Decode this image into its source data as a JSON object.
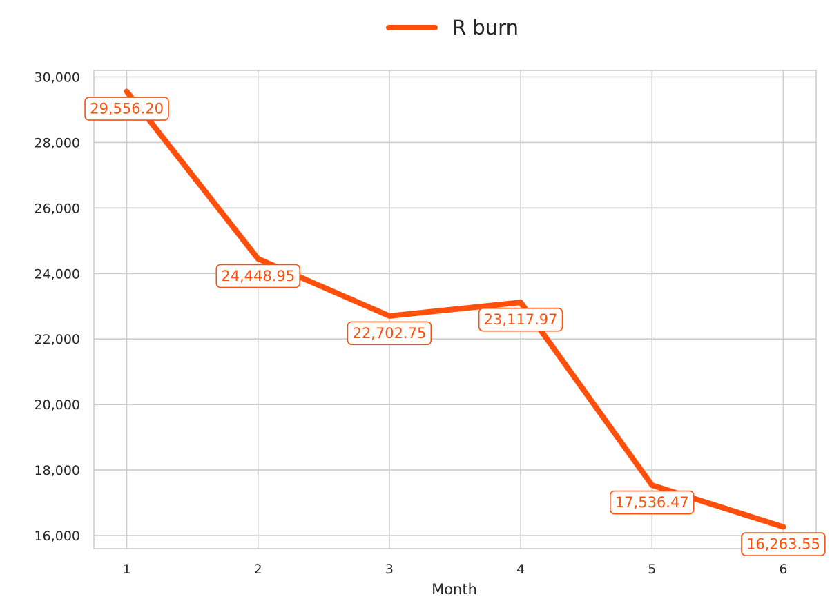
{
  "chart_data": {
    "type": "line",
    "title": "",
    "xlabel": "Month",
    "ylabel": "",
    "x": [
      1,
      2,
      3,
      4,
      5,
      6
    ],
    "x_tick_labels": [
      "1",
      "2",
      "3",
      "4",
      "5",
      "6"
    ],
    "y_ticks": [
      16000,
      18000,
      20000,
      22000,
      24000,
      26000,
      28000,
      30000
    ],
    "y_tick_labels": [
      "16,000",
      "18,000",
      "20,000",
      "22,000",
      "24,000",
      "26,000",
      "28,000",
      "30,000"
    ],
    "ylim": [
      15600,
      30200
    ],
    "xlim": [
      0.75,
      6.25
    ],
    "grid": true,
    "legend_position": "top-center",
    "series": [
      {
        "name": "R burn",
        "color": "#FF4F0A",
        "values": [
          29556.2,
          24448.95,
          22702.75,
          23117.97,
          17536.47,
          16263.55
        ],
        "labels": [
          "29,556.20",
          "24,448.95",
          "22,702.75",
          "23,117.97",
          "17,536.47",
          "16,263.55"
        ]
      }
    ]
  }
}
